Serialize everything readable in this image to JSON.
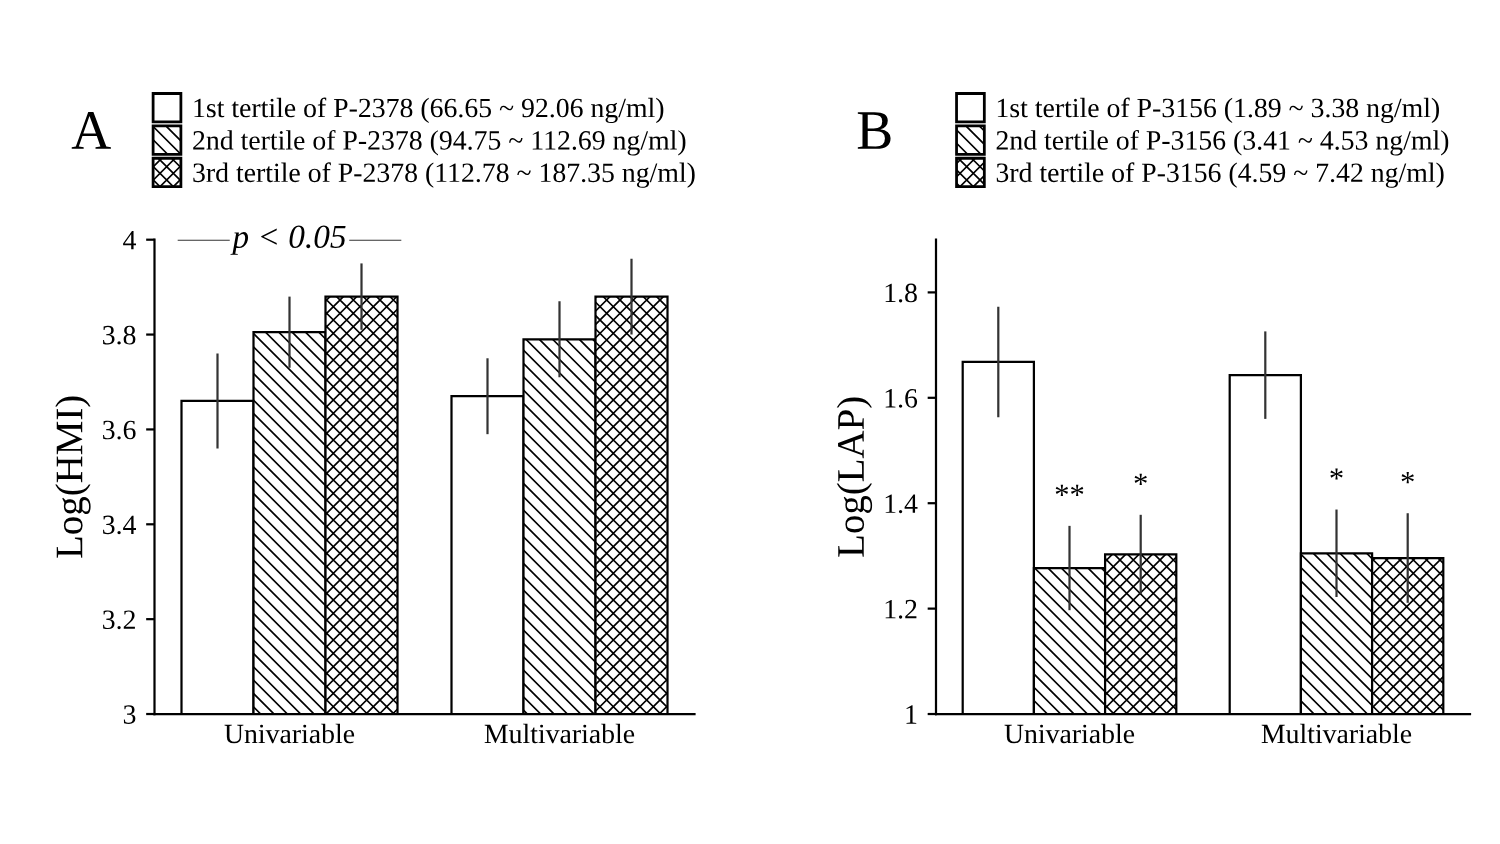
{
  "chart_data": [
    {
      "type": "bar",
      "title": "A",
      "ylabel": "Log(HMI)",
      "categories": [
        "Univariable",
        "Multivariable"
      ],
      "ylim": [
        3,
        4
      ],
      "yticks": [
        3,
        3.2,
        3.4,
        3.6,
        3.8,
        4
      ],
      "grid": false,
      "legend": "top",
      "series": [
        {
          "name": "1st tertile of P-2378 (66.65 ~ 92.06 ng/ml)",
          "color": "#ffffff",
          "values": [
            3.66,
            3.67
          ],
          "errors": [
            0.1,
            0.08
          ]
        },
        {
          "name": "2nd tertile of P-2378 (94.75 ~ 112.69 ng/ml)",
          "color": "#000000",
          "values": [
            3.805,
            3.79
          ],
          "errors": [
            0.075,
            0.08
          ]
        },
        {
          "name": "3rd tertile of P-2378 (112.78 ~ 187.35 ng/ml)",
          "color": "#000000",
          "values": [
            3.88,
            3.88
          ],
          "errors": [
            0.07,
            0.08
          ]
        }
      ],
      "annotations": [
        "p < 0.05"
      ]
    },
    {
      "type": "bar",
      "title": "B",
      "ylabel": "Log(LAP)",
      "categories": [
        "Univariable",
        "Multivariable"
      ],
      "ylim": [
        1,
        1.9
      ],
      "yticks": [
        1,
        1.2,
        1.4,
        1.6,
        1.8
      ],
      "grid": false,
      "legend": "top",
      "series": [
        {
          "name": "1st tertile of P-3156 (1.89 ~ 3.38 ng/ml)",
          "color": "#ffffff",
          "values": [
            1.668,
            1.643
          ],
          "errors": [
            0.105,
            0.083
          ]
        },
        {
          "name": "2nd tertile of P-3156 (3.41 ~ 4.53 ng/ml)",
          "color": "#000000",
          "values": [
            1.277,
            1.305
          ],
          "errors": [
            0.08,
            0.083
          ]
        },
        {
          "name": "3rd tertile of P-3156 (4.59 ~ 7.42 ng/ml)",
          "color": "#000000",
          "values": [
            1.303,
            1.296
          ],
          "errors": [
            0.075,
            0.085
          ]
        }
      ],
      "annotations": [
        "**",
        "*",
        "*",
        "*"
      ]
    }
  ]
}
